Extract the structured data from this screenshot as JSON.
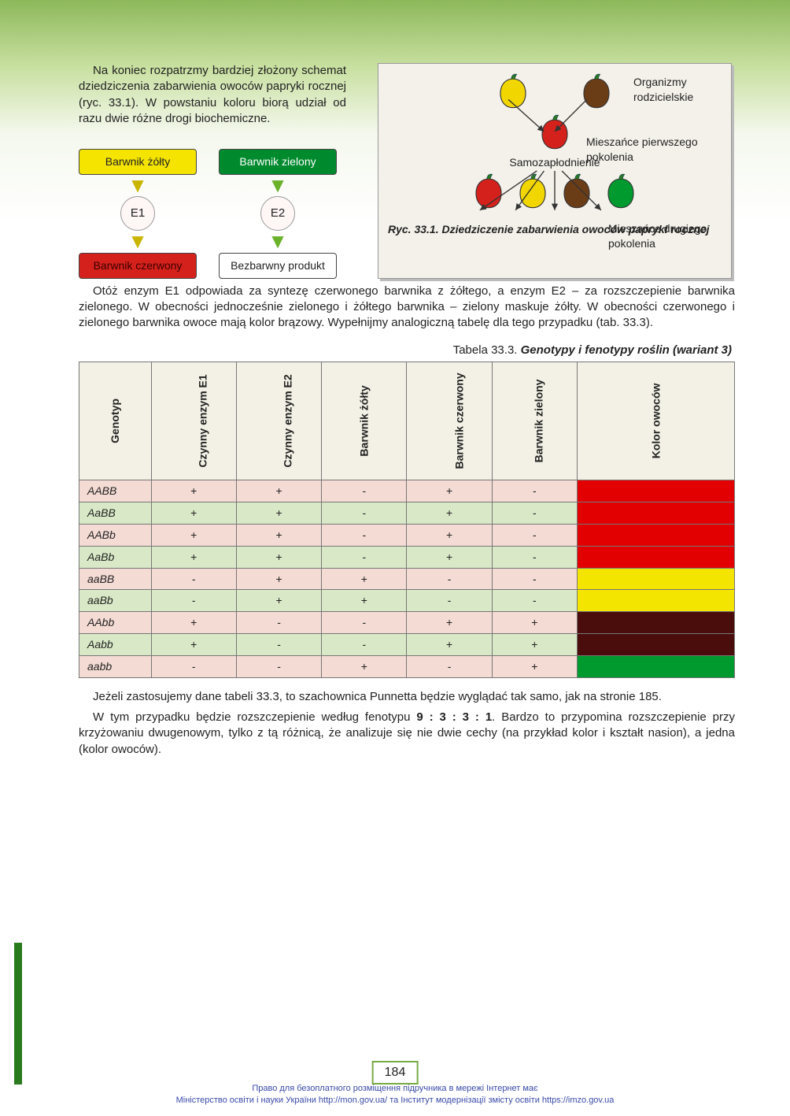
{
  "intro_paragraph": "Na koniec rozpatrzmy bardziej złożony schemat dziedziczenia zabarwienia owoców papryki rocznej (ryc. 33.1). W powstaniu koloru biorą udział od razu dwie różne drogi biochemiczne.",
  "flowchart": {
    "yellow_box": "Barwnik żółty",
    "green_box": "Barwnik zielony",
    "e1": "E1",
    "e2": "E2",
    "red_box": "Barwnik czerwony",
    "colorless_box": "Bezbarwny produkt"
  },
  "figure": {
    "parent_label": "Organizmy rodzicielskie",
    "f1_label": "Mieszańce pierwszego pokolenia",
    "self_pollination": "Samozapłodnienie",
    "f2_label": "Mieszańce drugiego pokolenia",
    "caption": "Ryc. 33.1. Dziedziczenie zabarwienia owoców papryki rocznej",
    "parent_colors": [
      "#f2d600",
      "#6b3d17"
    ],
    "f1_color": "#d5211c",
    "f2_colors": [
      "#d5211c",
      "#f2d600",
      "#6b3d17",
      "#009a2e"
    ]
  },
  "paragraph2": "Otóż enzym E1 odpowiada za syntezę czerwonego barwnika z żółtego, a enzym E2 – za rozszczepienie barwnika zielonego. W obecności jednocześnie zielonego i żółtego barwnika – zielony maskuje żółty. W obecności czerwonego i zielonego barwnika owoce mają kolor brązowy. Wypełnijmy analogiczną tabelę dla tego przypadku (tab. 33.3).",
  "table_title_prefix": "Tabela 33.3. ",
  "table_title_italic": "Genotypy i fenotypy roślin (wariant 3)",
  "table": {
    "headers": [
      "Genotyp",
      "Czynny enzym E1",
      "Czynny enzym E2",
      "Barwnik żółty",
      "Barwnik czerwony",
      "Barwnik zielony",
      "Kolor owoców"
    ],
    "row_color_classes": [
      "row-pink",
      "row-green",
      "row-pink",
      "row-green",
      "row-pink",
      "row-green",
      "row-pink",
      "row-green",
      "row-pink"
    ],
    "rows": [
      {
        "g": "AABB",
        "e1": "+",
        "e2": "+",
        "zol": "-",
        "czr": "+",
        "ziel": "-",
        "color": "color-red"
      },
      {
        "g": "AaBB",
        "e1": "+",
        "e2": "+",
        "zol": "-",
        "czr": "+",
        "ziel": "-",
        "color": "color-red"
      },
      {
        "g": "AABb",
        "e1": "+",
        "e2": "+",
        "zol": "-",
        "czr": "+",
        "ziel": "-",
        "color": "color-red"
      },
      {
        "g": "AaBb",
        "e1": "+",
        "e2": "+",
        "zol": "-",
        "czr": "+",
        "ziel": "-",
        "color": "color-red"
      },
      {
        "g": "aaBB",
        "e1": "-",
        "e2": "+",
        "zol": "+",
        "czr": "-",
        "ziel": "-",
        "color": "color-yellow"
      },
      {
        "g": "aaBb",
        "e1": "-",
        "e2": "+",
        "zol": "+",
        "czr": "-",
        "ziel": "-",
        "color": "color-yellow"
      },
      {
        "g": "AAbb",
        "e1": "+",
        "e2": "-",
        "zol": "-",
        "czr": "+",
        "ziel": "+",
        "color": "color-brown"
      },
      {
        "g": "Aabb",
        "e1": "+",
        "e2": "-",
        "zol": "-",
        "czr": "+",
        "ziel": "+",
        "color": "color-brown"
      },
      {
        "g": "aabb",
        "e1": "-",
        "e2": "-",
        "zol": "+",
        "czr": "-",
        "ziel": "+",
        "color": "color-green"
      }
    ]
  },
  "paragraph3": "Jeżeli zastosujemy dane tabeli 33.3, to szachownica Punnetta będzie wyglądać tak samo, jak na stronie 185.",
  "paragraph4_pre": "W tym przypadku będzie rozszczepienie według fenotypu ",
  "paragraph4_ratio": "9 : 3 : 3 : 1",
  "paragraph4_post": ". Bardzo to przypomina rozszczepienie przy krzyżowaniu dwugenowym, tylko z tą różnicą, że analizuje się nie dwie cechy (na przykład kolor i kształt nasion), a jedna (kolor owoców).",
  "page_number": "184",
  "footer_line1": "Право для безоплатного розміщення підручника в мережі Інтернет має",
  "footer_line2": "Міністерство освіти і науки України http://mon.gov.ua/ та Інститут модернізації змісту освіти https://imzo.gov.ua"
}
